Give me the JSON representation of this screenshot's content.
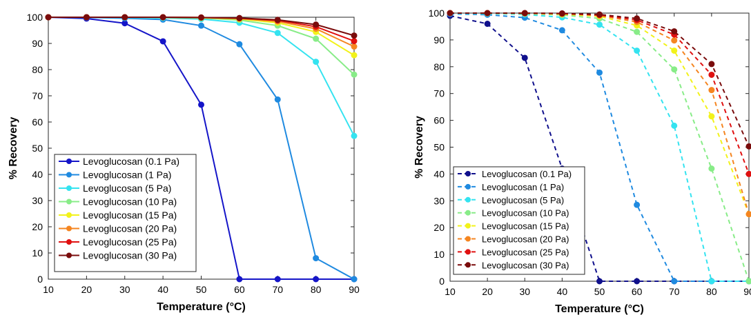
{
  "chart_data": [
    {
      "type": "line",
      "line_style": "solid",
      "xlabel": "Temperature (°C)",
      "ylabel": "% Recovery",
      "xlim": [
        10,
        90
      ],
      "ylim": [
        0,
        100
      ],
      "x_ticks": [
        "10",
        "20",
        "30",
        "40",
        "50",
        "60",
        "70",
        "80",
        "90"
      ],
      "y_ticks": [
        "0",
        "10",
        "20",
        "30",
        "40",
        "50",
        "60",
        "70",
        "80",
        "90",
        "100"
      ],
      "grid": false,
      "legend_position": "bottom-left",
      "x": [
        10,
        20,
        30,
        40,
        50,
        60,
        70,
        80,
        90
      ],
      "series": [
        {
          "name": "Levoglucosan (0.1 Pa)",
          "color": "#1515c8",
          "values": [
            100,
            99.5,
            97.7,
            90.8,
            66.6,
            0,
            0,
            0,
            0
          ]
        },
        {
          "name": "Levoglucosan (1 Pa)",
          "color": "#1f8ae0",
          "values": [
            100,
            99.9,
            99.6,
            99.1,
            96.8,
            89.7,
            68.6,
            8.0,
            0
          ]
        },
        {
          "name": "Levoglucosan (5 Pa)",
          "color": "#34e3f0",
          "values": [
            100,
            100,
            99.9,
            99.7,
            99.3,
            97.9,
            94.0,
            83.0,
            54.7
          ]
        },
        {
          "name": "Levoglucosan (10 Pa)",
          "color": "#88ec88",
          "values": [
            100,
            100,
            100,
            99.9,
            99.7,
            98.9,
            96.8,
            91.8,
            78.1
          ]
        },
        {
          "name": "Levoglucosan (15 Pa)",
          "color": "#f2f21a",
          "values": [
            100,
            100,
            100,
            100,
            99.8,
            99.3,
            97.9,
            94.4,
            85.5
          ]
        },
        {
          "name": "Levoglucosan (20 Pa)",
          "color": "#f58520",
          "values": [
            100,
            100,
            100,
            100,
            99.9,
            99.5,
            98.4,
            95.6,
            88.8
          ]
        },
        {
          "name": "Levoglucosan (25 Pa)",
          "color": "#e01010",
          "values": [
            100,
            100,
            100,
            100,
            99.9,
            99.6,
            98.8,
            96.4,
            90.9
          ]
        },
        {
          "name": "Levoglucosan (30 Pa)",
          "color": "#7a0c0c",
          "values": [
            100,
            100,
            100,
            100,
            99.9,
            99.7,
            99.0,
            97.2,
            93.0
          ]
        }
      ]
    },
    {
      "type": "line",
      "line_style": "dashed",
      "xlabel": "Temperature (°C)",
      "ylabel": "% Recovery",
      "xlim": [
        10,
        90
      ],
      "ylim": [
        0,
        100
      ],
      "x_ticks": [
        "10",
        "20",
        "30",
        "40",
        "50",
        "60",
        "70",
        "80",
        "90"
      ],
      "y_ticks": [
        "0",
        "10",
        "20",
        "30",
        "40",
        "50",
        "60",
        "70",
        "80",
        "90",
        "100"
      ],
      "grid": false,
      "legend_position": "bottom-left",
      "x": [
        10,
        20,
        30,
        40,
        50,
        60,
        70,
        80,
        90
      ],
      "series": [
        {
          "name": "Levoglucosan (0.1 Pa)",
          "color": "#10108c",
          "values": [
            99.0,
            96.0,
            83.3,
            42.0,
            0,
            0,
            0,
            0,
            0
          ]
        },
        {
          "name": "Levoglucosan (1 Pa)",
          "color": "#1f8ae0",
          "values": [
            99.7,
            99.4,
            98.3,
            93.6,
            77.8,
            28.5,
            0,
            0,
            0
          ]
        },
        {
          "name": "Levoglucosan (5 Pa)",
          "color": "#34e3f0",
          "values": [
            99.9,
            99.8,
            99.5,
            98.4,
            95.7,
            86.0,
            58.0,
            0,
            0
          ]
        },
        {
          "name": "Levoglucosan (10 Pa)",
          "color": "#88ec88",
          "values": [
            100,
            99.9,
            99.8,
            99.3,
            98.0,
            93.0,
            79.0,
            42.0,
            0
          ]
        },
        {
          "name": "Levoglucosan (15 Pa)",
          "color": "#f2f21a",
          "values": [
            100,
            100,
            99.9,
            99.6,
            98.8,
            95.4,
            86.0,
            61.5,
            25.0
          ]
        },
        {
          "name": "Levoglucosan (20 Pa)",
          "color": "#f58520",
          "values": [
            100,
            100,
            99.9,
            99.8,
            99.1,
            96.7,
            89.8,
            71.3,
            25.0
          ]
        },
        {
          "name": "Levoglucosan (25 Pa)",
          "color": "#e01010",
          "values": [
            100,
            100,
            100,
            99.8,
            99.3,
            97.4,
            92.0,
            77.0,
            40.0
          ]
        },
        {
          "name": "Levoglucosan (30 Pa)",
          "color": "#7a0c0c",
          "values": [
            100,
            100,
            100,
            99.9,
            99.5,
            98.0,
            93.2,
            81.0,
            50.3
          ]
        }
      ]
    }
  ]
}
